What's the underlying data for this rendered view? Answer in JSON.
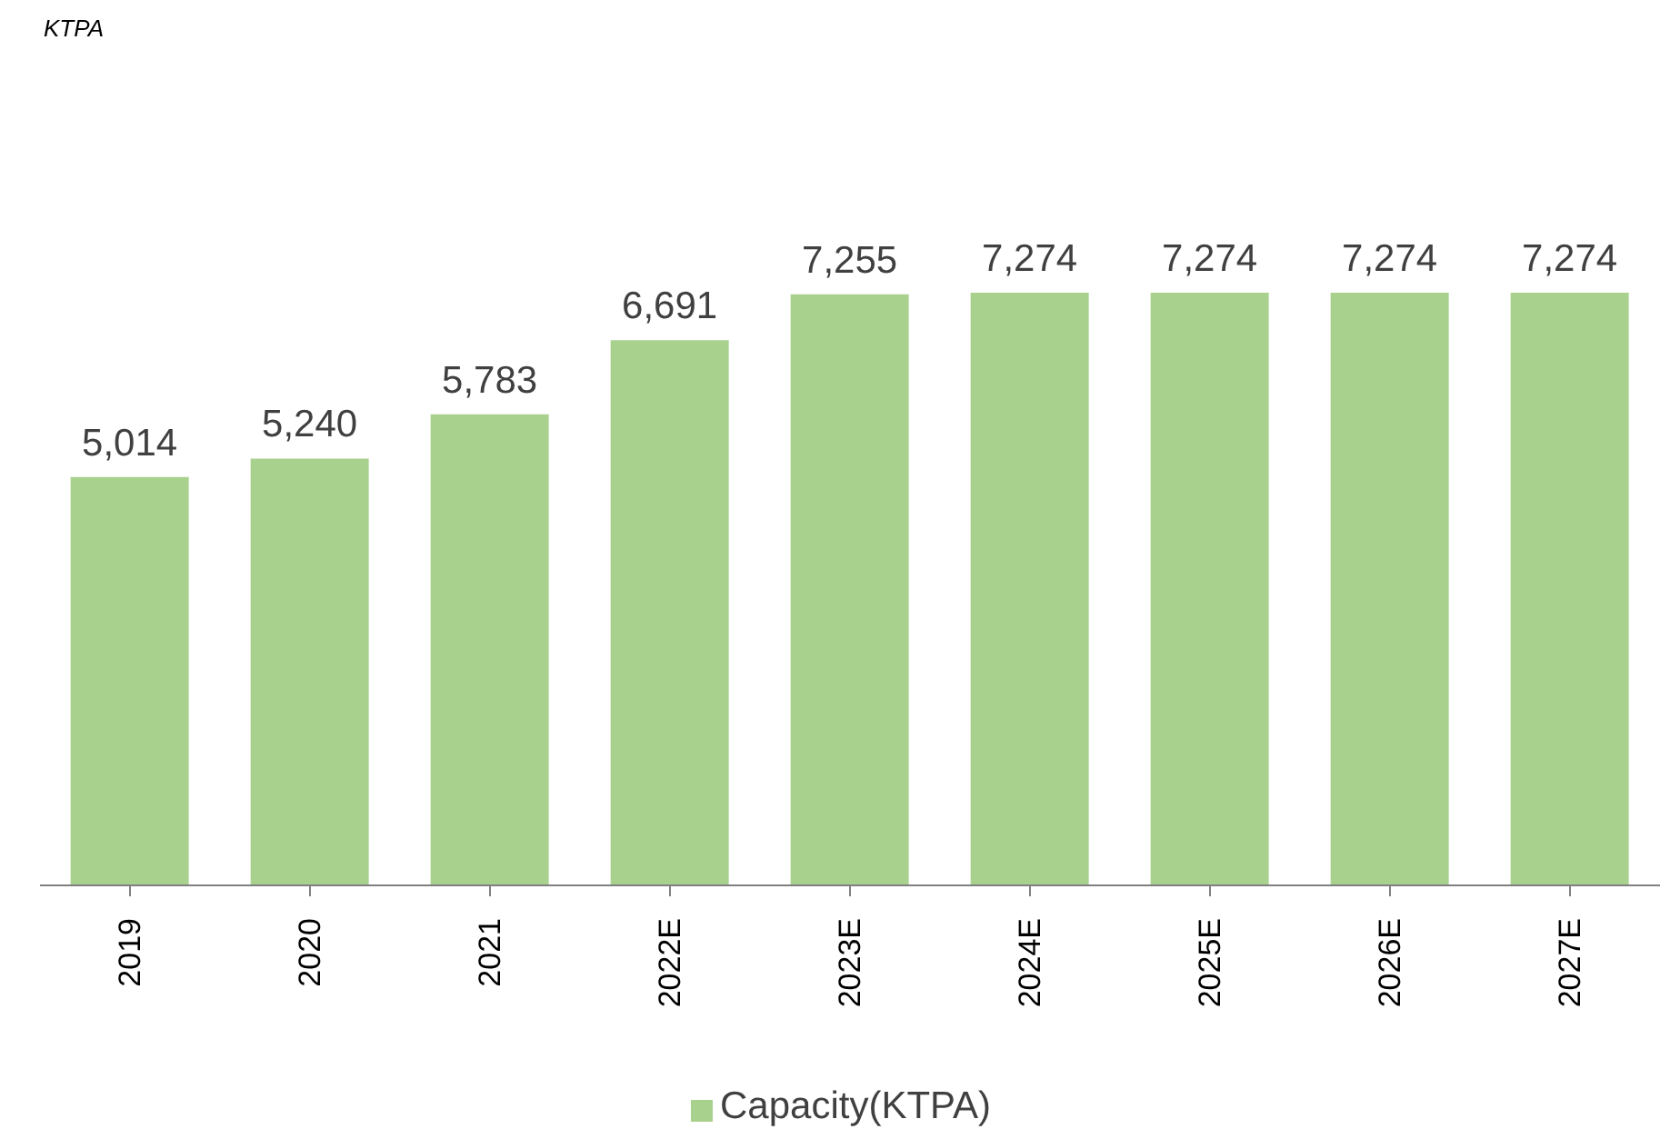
{
  "chart_data": {
    "type": "bar",
    "annotations": [
      "KTPA"
    ],
    "categories": [
      "2019",
      "2020",
      "2021",
      "2022E",
      "2023E",
      "2024E",
      "2025E",
      "2026E",
      "2027E"
    ],
    "series": [
      {
        "name": "Capacity(KTPA)",
        "color": "#a9d18e",
        "values": [
          5014,
          5240,
          5783,
          6691,
          7255,
          7274,
          7274,
          7274,
          7274
        ],
        "value_labels": [
          "5,014",
          "5,240",
          "5,783",
          "6,691",
          "7,255",
          "7,274",
          "7,274",
          "7,274",
          "7,274"
        ]
      }
    ],
    "legend": "bottom"
  }
}
